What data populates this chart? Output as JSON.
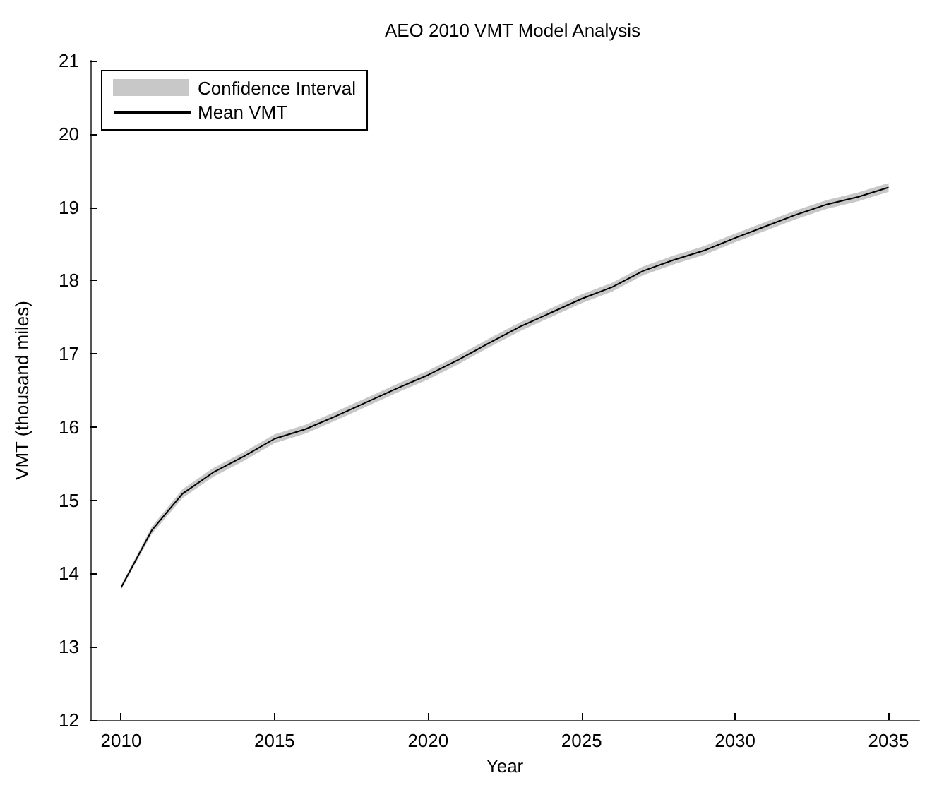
{
  "chart_data": {
    "type": "line",
    "title": "AEO 2010 VMT Model Analysis",
    "xlabel": "Year",
    "ylabel": "VMT (thousand miles)",
    "annotations": [
      "Confidence Interval"
    ],
    "x": [
      2010,
      2011,
      2012,
      2013,
      2014,
      2015,
      2016,
      2017,
      2018,
      2019,
      2020,
      2021,
      2022,
      2023,
      2024,
      2025,
      2026,
      2027,
      2028,
      2029,
      2030,
      2031,
      2032,
      2033,
      2034,
      2035
    ],
    "series": [
      {
        "name": "Mean VMT",
        "color": "#000000",
        "values": [
          13.81,
          14.59,
          15.09,
          15.38,
          15.6,
          15.84,
          15.97,
          16.15,
          16.34,
          16.53,
          16.71,
          16.92,
          17.15,
          17.37,
          17.56,
          17.75,
          17.91,
          18.13,
          18.28,
          18.41,
          18.58,
          18.74,
          18.9,
          19.04,
          19.14,
          19.27
        ],
        "lower": [
          13.78,
          14.54,
          15.03,
          15.32,
          15.54,
          15.78,
          15.91,
          16.09,
          16.28,
          16.47,
          16.65,
          16.86,
          17.09,
          17.31,
          17.5,
          17.69,
          17.85,
          18.07,
          18.22,
          18.35,
          18.52,
          18.68,
          18.84,
          18.98,
          19.08,
          19.21
        ],
        "upper": [
          13.84,
          14.64,
          15.15,
          15.44,
          15.66,
          15.9,
          16.03,
          16.21,
          16.4,
          16.59,
          16.77,
          16.98,
          17.21,
          17.43,
          17.62,
          17.81,
          17.97,
          18.19,
          18.34,
          18.47,
          18.64,
          18.8,
          18.96,
          19.1,
          19.2,
          19.33
        ]
      }
    ],
    "xlim": [
      2009,
      2036
    ],
    "xticks": [
      2010,
      2015,
      2020,
      2025,
      2030,
      2035
    ],
    "ylim": [
      12,
      21
    ],
    "yticks": [
      12,
      13,
      14,
      15,
      16,
      17,
      18,
      19,
      20,
      21
    ],
    "grid": false,
    "legend": "top left",
    "marker": "none",
    "line_style": "solid"
  }
}
